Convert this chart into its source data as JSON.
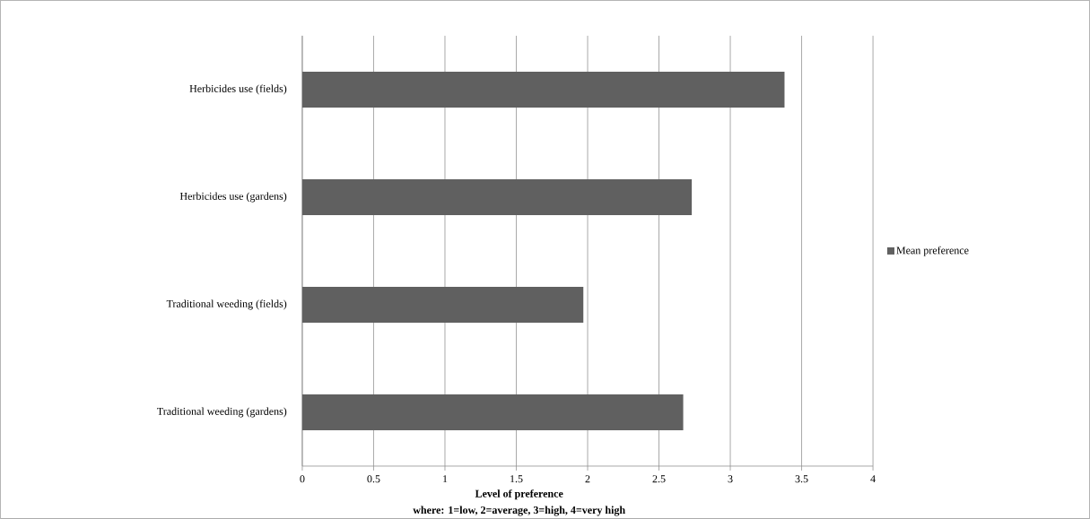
{
  "chart_data": {
    "type": "bar",
    "orientation": "horizontal",
    "categories": [
      "Herbicides use (fields)",
      "Herbicides use (gardens)",
      "Traditional weeding (fields)",
      "Traditional weeding (gardens)"
    ],
    "series": [
      {
        "name": "Mean preference",
        "color": "#606060",
        "values": [
          3.38,
          2.73,
          1.97,
          2.67
        ]
      }
    ],
    "xlabel": "Level of preference",
    "annotations": [
      "where: 1=low, 2=average, 3=high, 4=very high"
    ],
    "xlim": [
      0,
      4
    ],
    "xticks": [
      0,
      0.5,
      1,
      1.5,
      2,
      2.5,
      3,
      3.5,
      4
    ],
    "grid": "x",
    "legend": "right"
  }
}
